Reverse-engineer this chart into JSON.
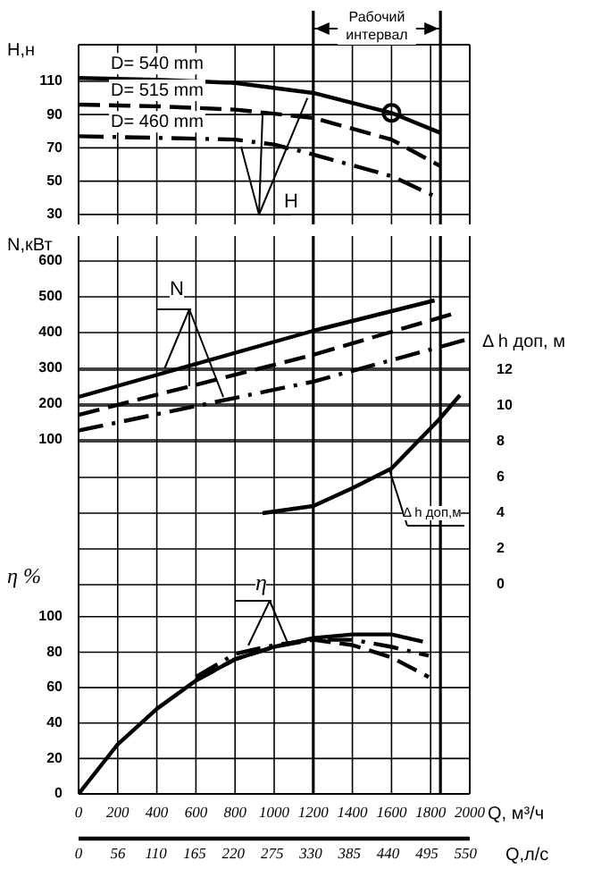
{
  "chart_data": [
    {
      "type": "line",
      "ylabel": "H,н",
      "xlim": [
        0,
        2000
      ],
      "xticks": [
        0,
        200,
        400,
        600,
        800,
        1000,
        1200,
        1400,
        1600,
        1800,
        2000
      ],
      "ylim": [
        24,
        132
      ],
      "yticks": [
        30,
        50,
        70,
        90,
        110
      ],
      "tick_labels": "y",
      "grid": true,
      "marker": "none",
      "series": [
        {
          "name": "D= 540 mm",
          "color": "#000000",
          "line_style": "solid",
          "x": [
            0,
            400,
            800,
            1200,
            1600,
            1850
          ],
          "values": [
            112,
            111,
            109,
            103,
            91,
            79
          ]
        },
        {
          "name": "D= 515 mm",
          "color": "#000000",
          "line_style": "dashed",
          "x": [
            0,
            400,
            800,
            1200,
            1600,
            1850
          ],
          "values": [
            96,
            95,
            93,
            88,
            75,
            59
          ]
        },
        {
          "name": "D= 460 mm",
          "color": "#000000",
          "line_style": "dashdot",
          "x": [
            0,
            400,
            800,
            1000,
            1200,
            1600,
            1820
          ],
          "values": [
            77,
            76,
            75,
            72,
            66,
            53,
            41
          ]
        },
        {
          "type": "scatter",
          "marker": "circle",
          "color": "#000000",
          "x": [
            1600
          ],
          "values": [
            91
          ]
        }
      ],
      "ref_lines": [
        {
          "axis": "x",
          "value": 1200
        },
        {
          "axis": "x",
          "value": 1850
        }
      ],
      "annotations": [
        "Рабочий интервал",
        {
          "text": "H",
          "x": 1170,
          "y": 100
        }
      ]
    },
    {
      "type": "line",
      "ylabel": "N,кВт",
      "y2label": "Δ h доп, м",
      "xlim": [
        0,
        2000
      ],
      "xticks": [
        0,
        200,
        400,
        600,
        800,
        1000,
        1200,
        1400,
        1600,
        1800,
        2000
      ],
      "ylim": [
        -345,
        670
      ],
      "yticks": [
        100,
        200,
        300,
        400,
        500,
        600
      ],
      "y2lim": [
        -0.8,
        19.5
      ],
      "y2ticks": [
        0,
        2,
        4,
        6,
        8,
        10,
        12
      ],
      "tick_labels": "y",
      "grid": true,
      "marker": "none",
      "series": [
        {
          "color": "#000000",
          "line_style": "solid",
          "x": [
            0,
            1200,
            1820
          ],
          "values": [
            220,
            405,
            490
          ]
        },
        {
          "color": "#000000",
          "line_style": "dashed",
          "x": [
            0,
            1200,
            1930
          ],
          "values": [
            170,
            338,
            455
          ]
        },
        {
          "color": "#000000",
          "line_style": "dashdot",
          "x": [
            0,
            1200,
            2000
          ],
          "values": [
            126,
            263,
            383
          ]
        },
        {
          "axis": "y2",
          "color": "#000000",
          "line_style": "solid",
          "x": [
            940,
            1200,
            1400,
            1600,
            1840,
            1950
          ],
          "values": [
            4.0,
            4.4,
            5.4,
            6.5,
            9.2,
            10.6
          ]
        }
      ],
      "ref_lines": [
        {
          "axis": "x",
          "value": 1200
        },
        {
          "axis": "x",
          "value": 1850
        }
      ],
      "annotations": [
        {
          "text": "N",
          "x": 440,
          "y": 300
        },
        {
          "text": "Δ h доп,м",
          "x": 1590,
          "y": 6.4
        }
      ]
    },
    {
      "type": "line",
      "ylabel": "η %",
      "xlabel": "Q, м³/ч",
      "x2label": "Q,л/с",
      "xlim": [
        0,
        2000
      ],
      "xticks": [
        0,
        200,
        400,
        600,
        800,
        1000,
        1200,
        1400,
        1600,
        1800,
        2000
      ],
      "x2lim": [
        0,
        556
      ],
      "x2ticks": [
        0,
        56,
        110,
        165,
        220,
        275,
        330,
        385,
        440,
        495,
        550
      ],
      "ylim": [
        0,
        110
      ],
      "yticks": [
        0,
        20,
        40,
        60,
        80,
        100
      ],
      "grid": true,
      "marker": "none",
      "series": [
        {
          "color": "#000000",
          "line_style": "solid",
          "x": [
            0,
            200,
            400,
            600,
            800,
            1000,
            1200,
            1400,
            1600,
            1760
          ],
          "values": [
            0,
            28,
            48,
            64,
            76,
            83,
            88,
            90,
            90,
            86
          ]
        },
        {
          "color": "#000000",
          "line_style": "dashed",
          "x": [
            600,
            800,
            1000,
            1200,
            1400,
            1600,
            1790
          ],
          "values": [
            64,
            76,
            83,
            87,
            84,
            77,
            66
          ]
        },
        {
          "color": "#000000",
          "line_style": "dashdot",
          "x": [
            600,
            800,
            1000,
            1200,
            1400,
            1600,
            1790
          ],
          "values": [
            66,
            79,
            84,
            87,
            87,
            83,
            78
          ]
        }
      ],
      "ref_lines": [
        {
          "axis": "x",
          "value": 1200
        },
        {
          "axis": "x",
          "value": 1850
        }
      ],
      "annotations": [
        {
          "text": "η",
          "x": 1070,
          "y": 85
        }
      ]
    }
  ]
}
